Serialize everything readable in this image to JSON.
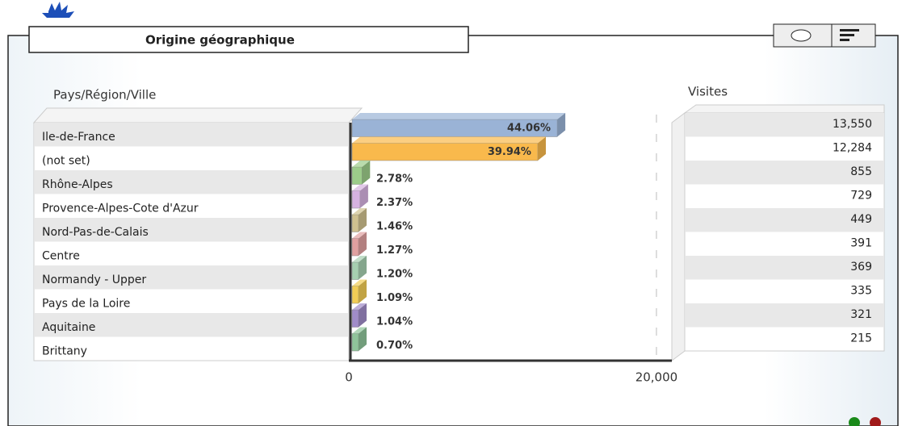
{
  "chart_data": {
    "type": "bar",
    "orientation": "horizontal",
    "title": "Origine géographique",
    "category_header": "Pays/Région/Ville",
    "value_header": "Visites",
    "categories": [
      "Ile-de-France",
      "(not set)",
      "Rhône-Alpes",
      "Provence-Alpes-Cote d'Azur",
      "Nord-Pas-de-Calais",
      "Centre",
      "Normandy - Upper",
      "Pays de la Loire",
      "Aquitaine",
      "Brittany"
    ],
    "values": [
      13550,
      12284,
      855,
      729,
      449,
      391,
      369,
      335,
      321,
      215
    ],
    "value_labels": [
      "13,550",
      "12,284",
      "855",
      "729",
      "449",
      "391",
      "369",
      "335",
      "321",
      "215"
    ],
    "percent_labels": [
      "44.06%",
      "39.94%",
      "2.78%",
      "2.37%",
      "1.46%",
      "1.27%",
      "1.20%",
      "1.09%",
      "1.04%",
      "0.70%"
    ],
    "colors": [
      "#9ab3d6",
      "#f9b94c",
      "#9ccc8a",
      "#d6b2e0",
      "#cfc08f",
      "#e0a0a0",
      "#a6cfb0",
      "#f1cc55",
      "#a08cc8",
      "#8fc49a"
    ],
    "xlim": [
      0,
      21000
    ],
    "xticks": [
      0,
      {
        "value": 20000,
        "label": "20,000"
      }
    ],
    "grid": true
  }
}
